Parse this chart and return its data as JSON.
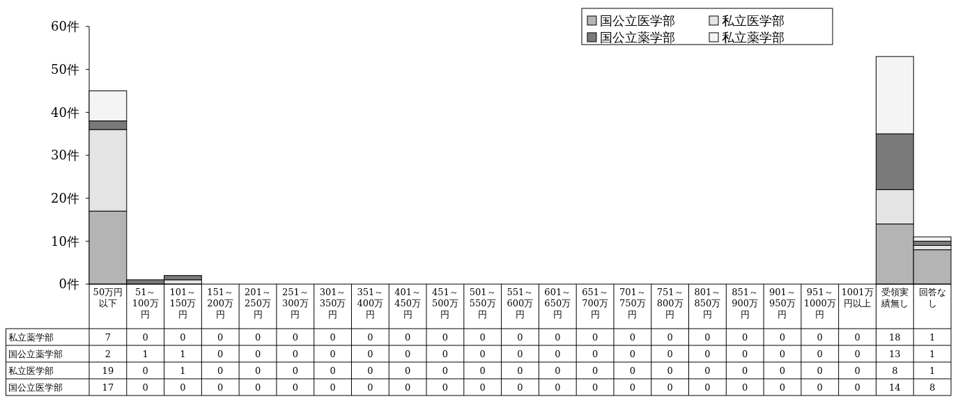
{
  "chart_data": {
    "type": "bar",
    "stacked": true,
    "categories": [
      "50万円以下",
      "51～100万円",
      "101～150万円",
      "151～200万円",
      "201～250万円",
      "251～300万円",
      "301～350万円",
      "351～400万円",
      "401～450万円",
      "451～500万円",
      "501～550万円",
      "551～600万円",
      "601～650万円",
      "651～700万円",
      "701～750万円",
      "751～800万円",
      "801～850万円",
      "851～900万円",
      "901～950万円",
      "951～1000万円",
      "1001万円以上",
      "受領実績無し",
      "回答なし"
    ],
    "series": [
      {
        "name": "国公立医学部",
        "color": "#b4b4b4",
        "values": [
          17,
          0,
          0,
          0,
          0,
          0,
          0,
          0,
          0,
          0,
          0,
          0,
          0,
          0,
          0,
          0,
          0,
          0,
          0,
          0,
          0,
          14,
          8
        ]
      },
      {
        "name": "私立医学部",
        "color": "#e4e4e4",
        "values": [
          19,
          0,
          1,
          0,
          0,
          0,
          0,
          0,
          0,
          0,
          0,
          0,
          0,
          0,
          0,
          0,
          0,
          0,
          0,
          0,
          0,
          8,
          1
        ]
      },
      {
        "name": "国公立薬学部",
        "color": "#7a7a7a",
        "values": [
          2,
          1,
          1,
          0,
          0,
          0,
          0,
          0,
          0,
          0,
          0,
          0,
          0,
          0,
          0,
          0,
          0,
          0,
          0,
          0,
          0,
          13,
          1
        ]
      },
      {
        "name": "私立薬学部",
        "color": "#f4f4f4",
        "values": [
          7,
          0,
          0,
          0,
          0,
          0,
          0,
          0,
          0,
          0,
          0,
          0,
          0,
          0,
          0,
          0,
          0,
          0,
          0,
          0,
          0,
          18,
          1
        ]
      }
    ],
    "ylim": [
      0,
      60
    ],
    "yticks": [
      {
        "value": 0,
        "label": "0件"
      },
      {
        "value": 10,
        "label": "10件"
      },
      {
        "value": 20,
        "label": "20件"
      },
      {
        "value": 30,
        "label": "30件"
      },
      {
        "value": 40,
        "label": "40件"
      },
      {
        "value": 50,
        "label": "50件"
      },
      {
        "value": 60,
        "label": "60件"
      }
    ],
    "legend": "top right",
    "data_labels": true,
    "grid": false
  }
}
